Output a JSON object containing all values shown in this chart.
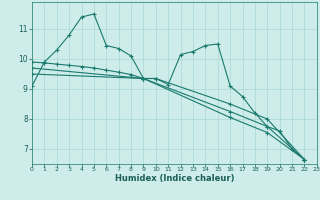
{
  "background_color": "#ceecea",
  "line_color": "#1a7a6e",
  "grid_color": "#aad8d3",
  "xlabel": "Humidex (Indice chaleur)",
  "xlim": [
    0,
    23
  ],
  "ylim": [
    6.5,
    11.9
  ],
  "yticks": [
    7,
    8,
    9,
    10,
    11
  ],
  "xticks": [
    0,
    1,
    2,
    3,
    4,
    5,
    6,
    7,
    8,
    9,
    10,
    11,
    12,
    13,
    14,
    15,
    16,
    17,
    18,
    19,
    20,
    21,
    22,
    23
  ],
  "curves": [
    {
      "x": [
        0,
        1,
        2,
        3,
        4,
        5,
        6,
        7,
        8,
        9,
        10,
        11,
        12,
        13,
        14,
        15,
        16,
        17,
        18,
        19,
        20,
        21,
        22
      ],
      "y": [
        9.1,
        9.9,
        10.3,
        10.8,
        11.4,
        11.5,
        10.45,
        10.35,
        10.1,
        9.35,
        9.35,
        9.15,
        10.15,
        10.25,
        10.45,
        10.5,
        9.1,
        8.75,
        8.2,
        7.75,
        7.6,
        7.0,
        6.65
      ]
    },
    {
      "x": [
        0,
        1,
        2,
        3,
        4,
        5,
        6,
        7,
        8,
        9,
        10,
        16,
        19,
        22
      ],
      "y": [
        9.9,
        9.87,
        9.83,
        9.79,
        9.75,
        9.7,
        9.63,
        9.56,
        9.48,
        9.35,
        9.35,
        8.5,
        8.0,
        6.65
      ]
    },
    {
      "x": [
        0,
        9,
        16,
        19,
        22
      ],
      "y": [
        9.7,
        9.35,
        8.25,
        7.75,
        6.65
      ]
    },
    {
      "x": [
        0,
        9,
        16,
        19,
        22
      ],
      "y": [
        9.5,
        9.35,
        8.05,
        7.55,
        6.65
      ]
    }
  ]
}
